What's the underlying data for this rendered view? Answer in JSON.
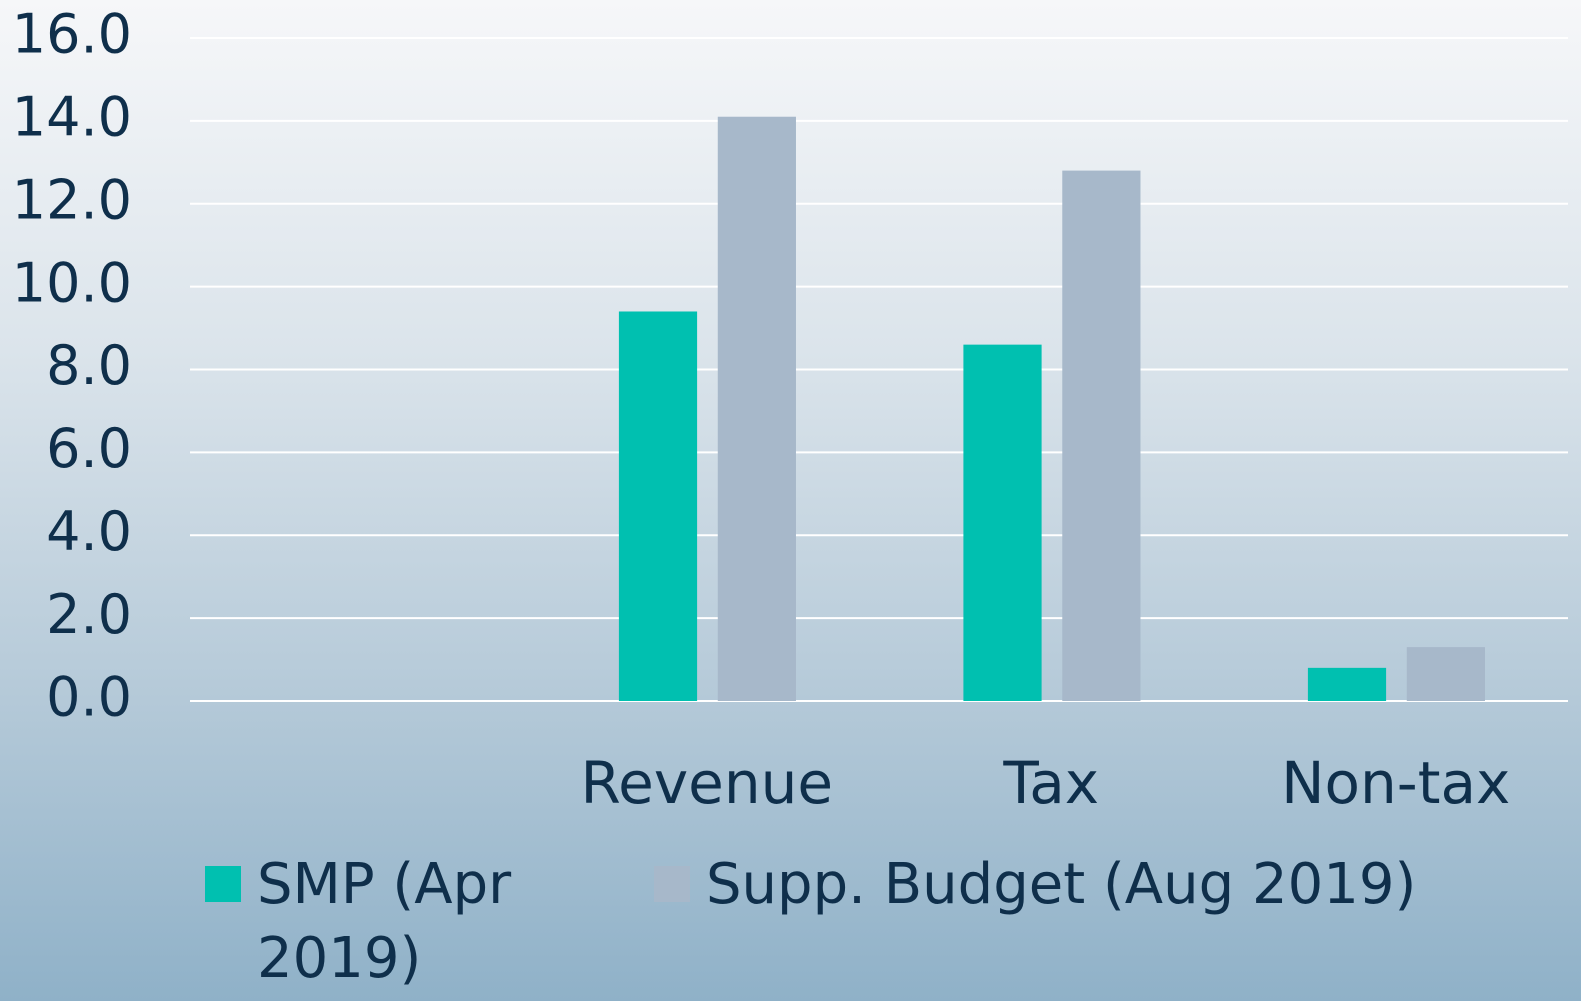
{
  "chart_data": {
    "type": "bar",
    "categories": [
      null,
      "Revenue",
      "Tax",
      "Non-tax"
    ],
    "series": [
      {
        "name": "SMP (Apr 2019)",
        "color": "#00c0b0",
        "values": [
          null,
          9.4,
          8.6,
          0.8
        ]
      },
      {
        "name": "Supp. Budget (Aug 2019)",
        "color": "#a7b8ca",
        "values": [
          null,
          14.1,
          12.8,
          1.3
        ]
      }
    ],
    "ylim": [
      0,
      16
    ],
    "yticks": [
      {
        "value": 0,
        "label": "0.0"
      },
      {
        "value": 2,
        "label": "2.0"
      },
      {
        "value": 4,
        "label": "4.0"
      },
      {
        "value": 6,
        "label": "6.0"
      },
      {
        "value": 8,
        "label": "8.0"
      },
      {
        "value": 10,
        "label": "10.0"
      },
      {
        "value": 12,
        "label": "12.0"
      },
      {
        "value": 14,
        "label": "14.0"
      },
      {
        "value": 16,
        "label": "16.0"
      }
    ],
    "grid": true
  }
}
